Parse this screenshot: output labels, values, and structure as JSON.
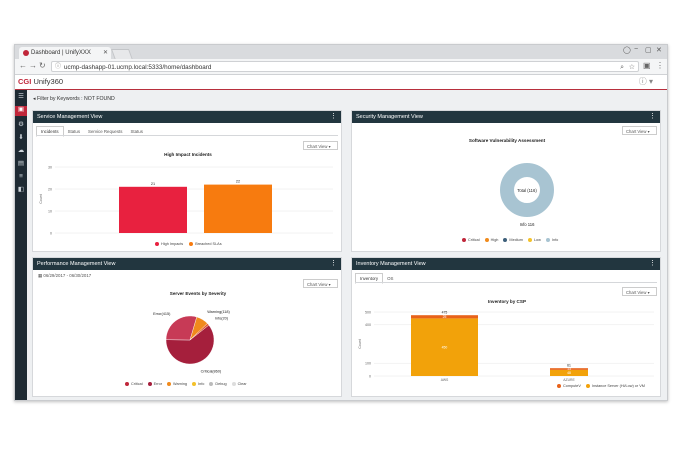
{
  "browser": {
    "tab_title": "Dashboard | UnifyXXX",
    "url": "ucmp-dashapp-01.ucmp.local:5333/home/dashboard"
  },
  "app": {
    "logo_prefix": "CGI",
    "logo_name": "Unify360",
    "filter_text": "Filter by Keywords : NOT FOUND"
  },
  "service_panel": {
    "title": "Service Management View",
    "tabs": [
      "Incidents",
      "Status",
      "Service Requests",
      "Status"
    ],
    "chart_select": "Chart View",
    "chart_data": {
      "type": "bar",
      "title": "High Impact Incidents",
      "categories": [
        "High Impacts",
        "Breached SLAs"
      ],
      "values": [
        21,
        22
      ],
      "value_labels": [
        "21",
        "22"
      ],
      "ylabel": "Count",
      "yticks": [
        "0",
        "10",
        "20",
        "30"
      ],
      "ylim": [
        0,
        30
      ],
      "colors": [
        "#e8213f",
        "#f77b0f"
      ],
      "legend": [
        "High Impacts",
        "Breached SLAs"
      ]
    }
  },
  "security_panel": {
    "title": "Security Management View",
    "chart_select": "Chart View",
    "chart_data": {
      "type": "pie",
      "title": "Software Vulnerability Assessment",
      "center_label": "Total (116)",
      "outer_label": "Info 116",
      "slices": [
        {
          "name": "Info",
          "value": 116,
          "color": "#a8c4d2"
        }
      ],
      "legend": [
        {
          "name": "Critical",
          "color": "#c0263a"
        },
        {
          "name": "High",
          "color": "#f08a1c"
        },
        {
          "name": "Medium",
          "color": "#3d5f7a"
        },
        {
          "name": "Low",
          "color": "#f3c12a"
        },
        {
          "name": "Info",
          "color": "#a8c4d2"
        }
      ]
    }
  },
  "performance_panel": {
    "title": "Performance Management View",
    "date_range": "06/29/2017 - 06/30/2017",
    "chart_select": "Chart View",
    "chart_data": {
      "type": "pie",
      "title": "Server Events by Severity",
      "slices": [
        {
          "name": "Critical",
          "value": 860,
          "label": "Critical(860)",
          "color": "#a51f3c"
        },
        {
          "name": "Error",
          "value": 415,
          "label": "Error(415)",
          "color": "#c73a56"
        },
        {
          "name": "Warning",
          "value": 118,
          "label": "Warning(118)",
          "color": "#f08a1c"
        },
        {
          "name": "Info",
          "value": 20,
          "label": "Info(20)",
          "color": "#e35a2a"
        }
      ],
      "legend": [
        {
          "name": "Critical",
          "color": "#c0263a"
        },
        {
          "name": "Error",
          "color": "#a51f3c"
        },
        {
          "name": "Warning",
          "color": "#f08a1c"
        },
        {
          "name": "Info",
          "color": "#f3c12a"
        },
        {
          "name": "Debug",
          "color": "#bbbbbb"
        },
        {
          "name": "Clear",
          "color": "#dddddd"
        }
      ]
    }
  },
  "inventory_panel": {
    "title": "Inventory Management View",
    "tabs": [
      "Inventory",
      "OS"
    ],
    "chart_select": "Chart View",
    "chart_data": {
      "type": "bar",
      "stacked": true,
      "title": "Inventory by CSP",
      "categories": [
        "AWS",
        "AZURE"
      ],
      "series": [
        {
          "name": "ComputeV",
          "values": [
            25,
            13
          ],
          "color": "#e8621a"
        },
        {
          "name": "Instance Server (Hi/Low) or VM",
          "values": [
            450,
            48
          ],
          "color": "#f2a20a"
        }
      ],
      "value_labels": [
        {
          "top": "475",
          "inner": "25",
          "main": "450"
        },
        {
          "top": "61",
          "inner": "13",
          "main": "48"
        }
      ],
      "ylabel": "Count",
      "yticks": [
        "0",
        "100",
        "400",
        "500"
      ],
      "ylim": [
        0,
        500
      ]
    }
  },
  "icons": {
    "nav": [
      "hamburger-icon",
      "dashboard-icon",
      "gear-icon",
      "download-icon",
      "cloud-icon",
      "server-icon",
      "list-icon",
      "book-icon"
    ]
  }
}
